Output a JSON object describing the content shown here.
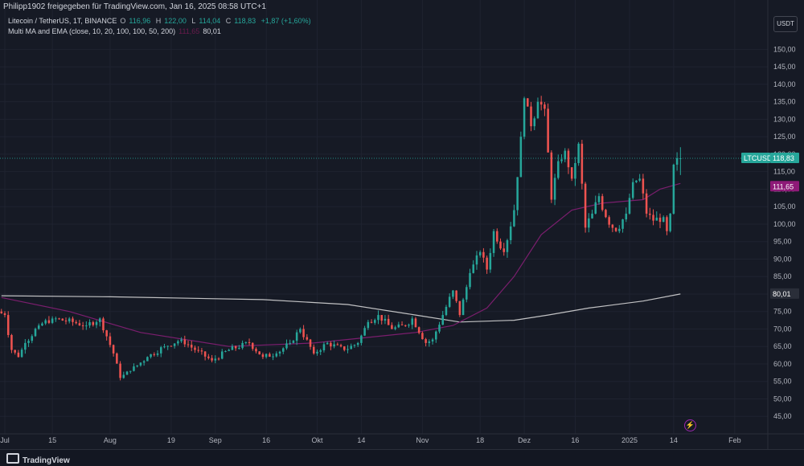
{
  "header": {
    "attribution": "Philipp1902 freigegeben für TradingView.com, Jan 16, 2025 08:58 UTC+1"
  },
  "legend": {
    "symbol": "Litecoin / TetherUS, 1T, BINANCE",
    "o_label": "O",
    "o_value": "116,96",
    "h_label": "H",
    "h_value": "122,00",
    "l_label": "L",
    "l_value": "114,04",
    "c_label": "C",
    "c_value": "118,83",
    "change": "+1,87 (+1,60%)",
    "indicator": "Multi MA and EMA (close, 10, 20, 100, 100, 50, 200)",
    "ind_value1": "111,65",
    "ind_value2": "80,01"
  },
  "currency_button": "USDT",
  "footer": {
    "brand": "TradingView"
  },
  "colors": {
    "background": "#161a25",
    "up": "#26a69a",
    "down": "#ef5350",
    "ema_line": "#7b1e6e",
    "ma_line": "#e0e0e0",
    "price_tag": "#26a69a",
    "ema_tag": "#8e1a78",
    "ma_tag": "#2a2e39"
  },
  "chart_data": {
    "type": "candlestick",
    "title": "Litecoin / TetherUS, 1T, BINANCE",
    "ylim": [
      40,
      154
    ],
    "y_ticks": [
      45,
      50,
      55,
      60,
      65,
      70,
      75,
      80,
      85,
      90,
      95,
      100,
      105,
      110,
      115,
      120,
      125,
      130,
      135,
      140,
      145,
      150
    ],
    "y_tick_labels": [
      "45,00",
      "50,00",
      "55,00",
      "60,00",
      "65,00",
      "70,00",
      "75,00",
      "80,00",
      "85,00",
      "90,00",
      "95,00",
      "100,00",
      "105,00",
      "110,00",
      "115,00",
      "120,00",
      "125,00",
      "130,00",
      "135,00",
      "140,00",
      "145,00",
      "150,00"
    ],
    "x_range": [
      "2024-07-01",
      "2025-02-06"
    ],
    "x_ticks": [
      {
        "date": "2024-07-01",
        "label": "Jul"
      },
      {
        "date": "2024-07-15",
        "label": "15"
      },
      {
        "date": "2024-08-01",
        "label": "Aug"
      },
      {
        "date": "2024-08-19",
        "label": "19"
      },
      {
        "date": "2024-09-01",
        "label": "Sep"
      },
      {
        "date": "2024-09-16",
        "label": "16"
      },
      {
        "date": "2024-10-01",
        "label": "Okt"
      },
      {
        "date": "2024-10-14",
        "label": "14"
      },
      {
        "date": "2024-11-01",
        "label": "Nov"
      },
      {
        "date": "2024-11-18",
        "label": "18"
      },
      {
        "date": "2024-12-01",
        "label": "Dez"
      },
      {
        "date": "2024-12-16",
        "label": "16"
      },
      {
        "date": "2025-01-01",
        "label": "2025"
      },
      {
        "date": "2025-01-14",
        "label": "14"
      },
      {
        "date": "2025-02-01",
        "label": "Feb"
      }
    ],
    "anchors": [
      {
        "date": "2024-06-30",
        "close": 75
      },
      {
        "date": "2024-07-02",
        "close": 74
      },
      {
        "date": "2024-07-04",
        "close": 64
      },
      {
        "date": "2024-07-06",
        "close": 62
      },
      {
        "date": "2024-07-08",
        "close": 66
      },
      {
        "date": "2024-07-12",
        "close": 71
      },
      {
        "date": "2024-07-16",
        "close": 73
      },
      {
        "date": "2024-07-22",
        "close": 72
      },
      {
        "date": "2024-07-26",
        "close": 71
      },
      {
        "date": "2024-07-30",
        "close": 73
      },
      {
        "date": "2024-08-03",
        "close": 63
      },
      {
        "date": "2024-08-05",
        "close": 56
      },
      {
        "date": "2024-08-08",
        "close": 58
      },
      {
        "date": "2024-08-13",
        "close": 62
      },
      {
        "date": "2024-08-18",
        "close": 65
      },
      {
        "date": "2024-08-23",
        "close": 67
      },
      {
        "date": "2024-08-27",
        "close": 64
      },
      {
        "date": "2024-09-01",
        "close": 61
      },
      {
        "date": "2024-09-06",
        "close": 64
      },
      {
        "date": "2024-09-12",
        "close": 66
      },
      {
        "date": "2024-09-16",
        "close": 62
      },
      {
        "date": "2024-09-20",
        "close": 63
      },
      {
        "date": "2024-09-24",
        "close": 66
      },
      {
        "date": "2024-09-27",
        "close": 70
      },
      {
        "date": "2024-10-01",
        "close": 63
      },
      {
        "date": "2024-10-05",
        "close": 66
      },
      {
        "date": "2024-10-10",
        "close": 64
      },
      {
        "date": "2024-10-14",
        "close": 66
      },
      {
        "date": "2024-10-17",
        "close": 72
      },
      {
        "date": "2024-10-20",
        "close": 74
      },
      {
        "date": "2024-10-24",
        "close": 70
      },
      {
        "date": "2024-10-28",
        "close": 71
      },
      {
        "date": "2024-10-30",
        "close": 73
      },
      {
        "date": "2024-11-03",
        "close": 66
      },
      {
        "date": "2024-11-05",
        "close": 67
      },
      {
        "date": "2024-11-08",
        "close": 74
      },
      {
        "date": "2024-11-11",
        "close": 81
      },
      {
        "date": "2024-11-13",
        "close": 74
      },
      {
        "date": "2024-11-16",
        "close": 86
      },
      {
        "date": "2024-11-19",
        "close": 92
      },
      {
        "date": "2024-11-21",
        "close": 87
      },
      {
        "date": "2024-11-23",
        "close": 98
      },
      {
        "date": "2024-11-26",
        "close": 92
      },
      {
        "date": "2024-11-29",
        "close": 104
      },
      {
        "date": "2024-12-01",
        "close": 125
      },
      {
        "date": "2024-12-02",
        "close": 136
      },
      {
        "date": "2024-12-04",
        "close": 128
      },
      {
        "date": "2024-12-06",
        "close": 135
      },
      {
        "date": "2024-12-08",
        "close": 133
      },
      {
        "date": "2024-12-10",
        "close": 107
      },
      {
        "date": "2024-12-12",
        "close": 118
      },
      {
        "date": "2024-12-14",
        "close": 121
      },
      {
        "date": "2024-12-16",
        "close": 113
      },
      {
        "date": "2024-12-18",
        "close": 123
      },
      {
        "date": "2024-12-20",
        "close": 99
      },
      {
        "date": "2024-12-22",
        "close": 103
      },
      {
        "date": "2024-12-24",
        "close": 108
      },
      {
        "date": "2024-12-26",
        "close": 102
      },
      {
        "date": "2024-12-29",
        "close": 98
      },
      {
        "date": "2025-01-01",
        "close": 103
      },
      {
        "date": "2025-01-03",
        "close": 112
      },
      {
        "date": "2025-01-05",
        "close": 113
      },
      {
        "date": "2025-01-07",
        "close": 103
      },
      {
        "date": "2025-01-09",
        "close": 101
      },
      {
        "date": "2025-01-12",
        "close": 102
      },
      {
        "date": "2025-01-13",
        "close": 98
      },
      {
        "date": "2025-01-14",
        "close": 103
      },
      {
        "date": "2025-01-15",
        "close": 117
      },
      {
        "date": "2025-01-16",
        "close": 118.83
      }
    ],
    "ema_series": {
      "value": 111.65,
      "points": [
        {
          "date": "2024-06-30",
          "value": 79
        },
        {
          "date": "2024-07-20",
          "value": 75
        },
        {
          "date": "2024-08-10",
          "value": 69
        },
        {
          "date": "2024-09-05",
          "value": 65
        },
        {
          "date": "2024-09-30",
          "value": 66
        },
        {
          "date": "2024-10-30",
          "value": 69
        },
        {
          "date": "2024-11-10",
          "value": 71
        },
        {
          "date": "2024-11-20",
          "value": 76
        },
        {
          "date": "2024-11-28",
          "value": 85
        },
        {
          "date": "2024-12-06",
          "value": 97
        },
        {
          "date": "2024-12-15",
          "value": 104
        },
        {
          "date": "2024-12-24",
          "value": 106
        },
        {
          "date": "2025-01-05",
          "value": 107
        },
        {
          "date": "2025-01-10",
          "value": 110
        },
        {
          "date": "2025-01-16",
          "value": 111.65
        }
      ]
    },
    "ma_series": {
      "value": 80.01,
      "points": [
        {
          "date": "2024-06-30",
          "value": 79.5
        },
        {
          "date": "2024-08-01",
          "value": 79.2
        },
        {
          "date": "2024-09-15",
          "value": 78.4
        },
        {
          "date": "2024-10-10",
          "value": 77
        },
        {
          "date": "2024-10-30",
          "value": 74
        },
        {
          "date": "2024-11-12",
          "value": 72
        },
        {
          "date": "2024-11-28",
          "value": 72.5
        },
        {
          "date": "2024-12-08",
          "value": 74
        },
        {
          "date": "2024-12-20",
          "value": 76
        },
        {
          "date": "2025-01-05",
          "value": 78
        },
        {
          "date": "2025-01-16",
          "value": 80.01
        }
      ]
    },
    "last_price": 118.83,
    "price_label": "LTCUSDT",
    "price_value": "118,83",
    "ema_label": "111,65",
    "ma_label": "80,01"
  }
}
